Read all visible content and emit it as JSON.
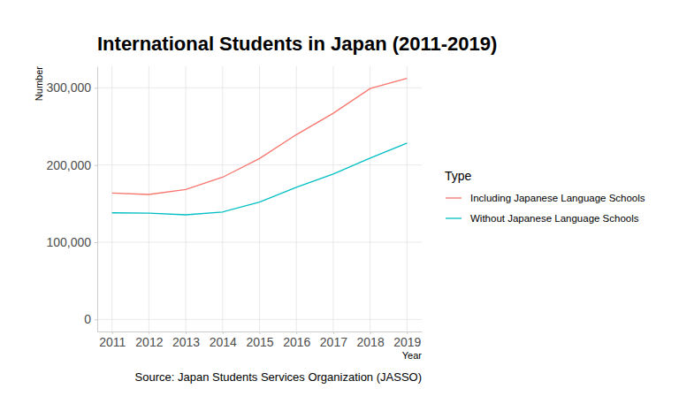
{
  "chart_data": {
    "type": "line",
    "title": "International Students in Japan (2011-2019)",
    "x_label": "Year",
    "y_label": "Number",
    "caption": "Source: Japan Students Services Organization (JASSO)",
    "legend_title": "Type",
    "x": [
      2011,
      2012,
      2013,
      2014,
      2015,
      2016,
      2017,
      2018,
      2019
    ],
    "series": [
      {
        "name": "Including Japanese Language Schools",
        "color": "#F8766D",
        "values": [
          163697,
          161848,
          168145,
          184155,
          208379,
          239287,
          267042,
          298980,
          312214
        ]
      },
      {
        "name": "Without Japanese Language Schools",
        "color": "#00BFC4",
        "values": [
          138075,
          137756,
          135519,
          139185,
          152062,
          171122,
          188384,
          208901,
          228403
        ]
      }
    ],
    "xlim": [
      2010.6,
      2019.4
    ],
    "xticks": [
      2011,
      2012,
      2013,
      2014,
      2015,
      2016,
      2017,
      2018,
      2019
    ],
    "ylim": [
      -15600,
      327800
    ],
    "yticks": [
      0,
      {
        "value": 100000,
        "label": "100,000"
      },
      {
        "value": 200000,
        "label": "200,000"
      },
      {
        "value": 300000,
        "label": "300,000"
      }
    ],
    "grid": true,
    "legend": "right"
  }
}
